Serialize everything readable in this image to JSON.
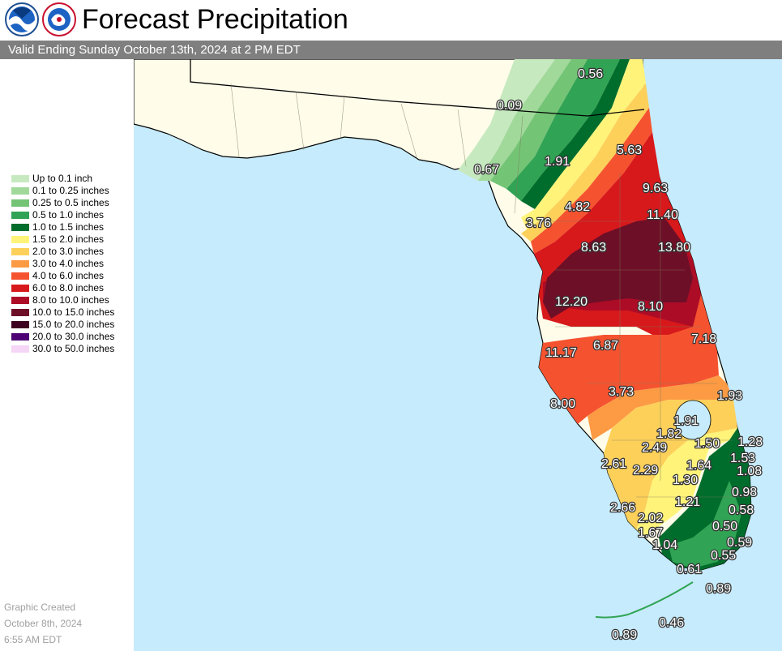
{
  "header": {
    "title": "Forecast Precipitation",
    "logo_1": "noaa-logo",
    "logo_2": "nws-logo"
  },
  "valid_bar": {
    "text": "Valid Ending Sunday October 13th, 2024 at 2 PM EDT"
  },
  "legend": {
    "items": [
      {
        "label": "Up to 0.1 inch",
        "color": "#c7e9c0"
      },
      {
        "label": "0.1 to 0.25 inches",
        "color": "#a1d99b"
      },
      {
        "label": "0.25 to 0.5 inches",
        "color": "#74c476"
      },
      {
        "label": "0.5 to 1.0 inches",
        "color": "#31a354"
      },
      {
        "label": "1.0 to 1.5 inches",
        "color": "#006d2c"
      },
      {
        "label": "1.5 to 2.0 inches",
        "color": "#fff37a"
      },
      {
        "label": "2.0 to 3.0 inches",
        "color": "#fdd05a"
      },
      {
        "label": "3.0 to 4.0 inches",
        "color": "#fd9a44"
      },
      {
        "label": "4.0 to 6.0 inches",
        "color": "#f55330"
      },
      {
        "label": "6.0 to 8.0 inches",
        "color": "#d7191c"
      },
      {
        "label": "8.0 to 10.0 inches",
        "color": "#ad0c26"
      },
      {
        "label": "10.0 to 15.0 inches",
        "color": "#6e0f28"
      },
      {
        "label": "15.0 to 20.0 inches",
        "color": "#3d0021"
      },
      {
        "label": "20.0 to 30.0 inches",
        "color": "#4c0073"
      },
      {
        "label": "30.0 to 50.0 inches",
        "color": "#f6d6f6"
      }
    ]
  },
  "created": {
    "line1": "Graphic Created",
    "line2": "October 8th, 2024",
    "line3": "6:55 AM EDT"
  },
  "map": {
    "colors": {
      "water": "#c6ebfc",
      "land_dry": "#fffdea",
      "boundary": "#000000",
      "county_line": "#7a7a5a"
    },
    "values": [
      "0.56",
      "0.09",
      "5.63",
      "0.67",
      "1.91",
      "9.63",
      "4.82",
      "11.40",
      "3.76",
      "8.63",
      "13.80",
      "12.20",
      "8.10",
      "7.18",
      "11.17",
      "6.87",
      "3.73",
      "8.00",
      "1.93",
      "1.91",
      "1.82",
      "1.50",
      "1.28",
      "2.49",
      "1.53",
      "2.61",
      "2.29",
      "1.64",
      "1.08",
      "1.30",
      "0.98",
      "1.21",
      "2.66",
      "0.58",
      "2.02",
      "0.50",
      "1.67",
      "0.59",
      "1.04",
      "0.55",
      "0.61",
      "0.89",
      "0.46",
      "0.89"
    ]
  }
}
